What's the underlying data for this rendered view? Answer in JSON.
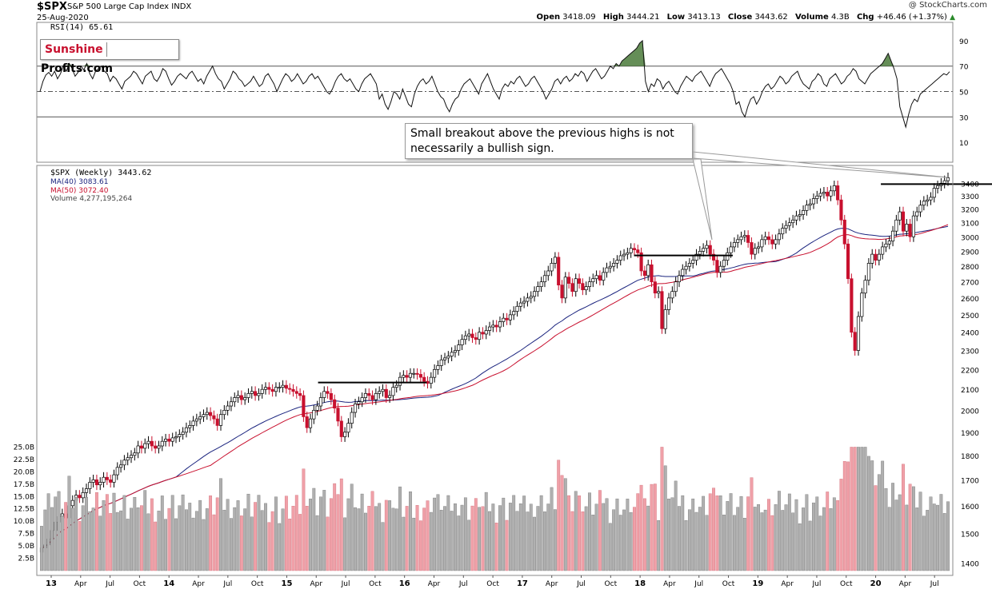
{
  "header": {
    "symbol": "$SPX",
    "description": "S&P 500 Large Cap Index",
    "exchange": "INDX",
    "date": "25-Aug-2020",
    "watermark": "@ StockCharts.com",
    "open_label": "Open",
    "open": "3418.09",
    "high_label": "High",
    "high": "3444.21",
    "low_label": "Low",
    "low": "3413.13",
    "close_label": "Close",
    "close": "3443.62",
    "volume_label": "Volume",
    "volume": "4.3B",
    "chg_label": "Chg",
    "chg": "+46.46 (+1.37%)"
  },
  "logo": {
    "part1": "Sunshine",
    "part2": "Profits.com"
  },
  "annotation": {
    "text": "Small breakout above the previous highs is not necessarily a bullish sign."
  },
  "colors": {
    "up": "#000000",
    "down": "#c8102e",
    "ma40": "#1a237e",
    "ma50": "#c8102e",
    "rsi_fill": "#4a7a3a",
    "volume_up": "#b0b0b0",
    "volume_down": "#f0a0a8"
  },
  "chart_data": [
    {
      "type": "line",
      "title": "RSI(14) 65.61",
      "series": [
        {
          "name": "RSI(14) 65.61",
          "values": [
            50,
            58,
            63,
            65,
            62,
            66,
            60,
            64,
            70,
            66,
            72,
            68,
            62,
            65,
            70,
            67,
            72,
            64,
            60,
            66,
            68,
            70,
            66,
            64,
            58,
            62,
            60,
            56,
            52,
            58,
            60,
            62,
            66,
            64,
            60,
            56,
            62,
            64,
            66,
            60,
            58,
            62,
            68,
            66,
            60,
            55,
            58,
            62,
            64,
            62,
            60,
            64,
            66,
            62,
            58,
            60,
            56,
            62,
            66,
            70,
            64,
            60,
            58,
            52,
            56,
            60,
            66,
            64,
            60,
            58,
            54,
            56,
            58,
            62,
            58,
            54,
            56,
            62,
            64,
            60,
            56,
            50,
            55,
            60,
            64,
            62,
            58,
            60,
            64,
            60,
            56,
            58,
            62,
            64,
            60,
            62,
            58,
            54,
            50,
            48,
            52,
            58,
            62,
            64,
            60,
            58,
            60,
            56,
            52,
            50,
            56,
            60,
            62,
            64,
            60,
            56,
            44,
            48,
            40,
            36,
            42,
            50,
            48,
            44,
            52,
            46,
            40,
            38,
            48,
            54,
            58,
            60,
            56,
            58,
            62,
            56,
            50,
            46,
            44,
            38,
            34,
            40,
            44,
            46,
            52,
            56,
            58,
            60,
            56,
            52,
            48,
            56,
            60,
            64,
            58,
            52,
            48,
            44,
            52,
            56,
            54,
            58,
            56,
            60,
            62,
            58,
            54,
            56,
            60,
            62,
            58,
            54,
            50,
            44,
            48,
            52,
            58,
            60,
            56,
            60,
            62,
            58,
            60,
            64,
            62,
            66,
            64,
            58,
            62,
            66,
            68,
            64,
            60,
            62,
            66,
            70,
            68,
            72,
            70,
            74,
            76,
            78,
            80,
            82,
            84,
            88,
            90,
            58,
            50,
            56,
            54,
            60,
            58,
            52,
            56,
            58,
            54,
            50,
            48,
            54,
            58,
            62,
            60,
            58,
            62,
            64,
            66,
            62,
            58,
            54,
            60,
            64,
            66,
            68,
            64,
            60,
            56,
            50,
            40,
            42,
            34,
            30,
            38,
            44,
            46,
            40,
            44,
            50,
            54,
            56,
            52,
            54,
            58,
            62,
            60,
            56,
            58,
            62,
            64,
            66,
            60,
            56,
            54,
            52,
            58,
            60,
            64,
            62,
            56,
            54,
            60,
            62,
            64,
            60,
            56,
            58,
            62,
            64,
            68,
            66,
            60,
            58,
            56,
            60,
            64,
            66,
            68,
            70,
            72,
            76,
            80,
            74,
            68,
            60,
            38,
            30,
            22,
            32,
            40,
            44,
            42,
            48,
            50,
            52,
            54,
            56,
            58,
            60,
            62,
            64,
            63,
            65.61
          ]
        }
      ],
      "ylim": [
        0,
        100
      ],
      "y_ticks": [
        "10",
        "30",
        "50",
        "70",
        "90"
      ],
      "reference_lines": [
        30,
        50,
        70
      ],
      "grid": false
    },
    {
      "type": "line",
      "title": "$SPX (Weekly) 3443.62",
      "series": [
        {
          "name": "$SPX (Weekly) 3443.62",
          "values": [
            1450,
            1460,
            1480,
            1510,
            1540,
            1560,
            1570,
            1555,
            1600,
            1620,
            1640,
            1630,
            1650,
            1665,
            1690,
            1700,
            1680,
            1690,
            1710,
            1700,
            1690,
            1720,
            1750,
            1760,
            1780,
            1790,
            1800,
            1810,
            1840,
            1830,
            1850,
            1860,
            1840,
            1830,
            1840,
            1860,
            1870,
            1860,
            1875,
            1880,
            1890,
            1900,
            1920,
            1930,
            1950,
            1960,
            1970,
            1980,
            1990,
            1975,
            1960,
            1930,
            1980,
            2000,
            2020,
            2040,
            2060,
            2070,
            2050,
            2060,
            2080,
            2090,
            2070,
            2080,
            2100,
            2110,
            2100,
            2090,
            2110,
            2110,
            2120,
            2105,
            2100,
            2090,
            2080,
            2070,
            1970,
            1920,
            1960,
            2000,
            2020,
            2060,
            2090,
            2080,
            2050,
            2010,
            1950,
            1880,
            1900,
            1940,
            1990,
            2030,
            2040,
            2060,
            2080,
            2070,
            2050,
            2080,
            2090,
            2100,
            2060,
            2070,
            2110,
            2120,
            2160,
            2170,
            2160,
            2180,
            2180,
            2175,
            2160,
            2140,
            2130,
            2160,
            2200,
            2220,
            2250,
            2260,
            2270,
            2290,
            2300,
            2330,
            2360,
            2380,
            2390,
            2370,
            2360,
            2400,
            2390,
            2410,
            2430,
            2440,
            2430,
            2460,
            2480,
            2470,
            2500,
            2520,
            2550,
            2570,
            2580,
            2600,
            2610,
            2640,
            2670,
            2700,
            2740,
            2770,
            2820,
            2860,
            2680,
            2600,
            2730,
            2690,
            2640,
            2720,
            2690,
            2650,
            2670,
            2700,
            2720,
            2740,
            2710,
            2760,
            2790,
            2800,
            2820,
            2840,
            2870,
            2880,
            2890,
            2920,
            2910,
            2890,
            2770,
            2740,
            2810,
            2700,
            2630,
            2640,
            2420,
            2530,
            2600,
            2640,
            2700,
            2740,
            2780,
            2800,
            2820,
            2840,
            2880,
            2900,
            2920,
            2940,
            2880,
            2840,
            2760,
            2800,
            2840,
            2890,
            2930,
            2960,
            2980,
            3000,
            3010,
            2960,
            2880,
            2920,
            2930,
            2980,
            3000,
            2980,
            2950,
            2980,
            3020,
            3060,
            3080,
            3100,
            3120,
            3150,
            3160,
            3190,
            3230,
            3240,
            3280,
            3300,
            3320,
            3330,
            3300,
            3340,
            3380,
            3270,
            3120,
            2950,
            2720,
            2400,
            2300,
            2490,
            2630,
            2710,
            2820,
            2880,
            2840,
            2880,
            2930,
            2950,
            2970,
            3040,
            3120,
            3180,
            3040,
            3090,
            3000,
            3150,
            3180,
            3230,
            3260,
            3270,
            3290,
            3360,
            3380,
            3400,
            3420,
            3443.62
          ]
        },
        {
          "name": "MA(40) 3083.61",
          "values": []
        },
        {
          "name": "MA(50) 3072.40",
          "values": []
        }
      ],
      "y_ticks": [
        "1400",
        "1500",
        "1600",
        "1700",
        "1800",
        "1900",
        "2000",
        "2100",
        "2200",
        "2300",
        "2400",
        "2500",
        "2600",
        "2700",
        "2800",
        "2900",
        "3000",
        "3100",
        "3200",
        "3300",
        "3400"
      ],
      "x_ticks": [
        "13",
        "Apr",
        "Jul",
        "Oct",
        "14",
        "Apr",
        "Jul",
        "Oct",
        "15",
        "Apr",
        "Jul",
        "Oct",
        "16",
        "Apr",
        "Jul",
        "Oct",
        "17",
        "Apr",
        "Jul",
        "Oct",
        "18",
        "Apr",
        "Jul",
        "Oct",
        "19",
        "Apr",
        "Jul",
        "Oct",
        "20",
        "Apr",
        "Jul"
      ],
      "ylim": [
        1380,
        3440
      ],
      "scale": "log",
      "horizontal_levels": [
        {
          "value": 2134,
          "from": "2015-05",
          "to": "2016-04"
        },
        {
          "value": 2872,
          "from": "2018-01",
          "to": "2018-11"
        },
        {
          "value": 3393,
          "from": "2020-02",
          "to": "2020-08"
        }
      ]
    },
    {
      "type": "bar",
      "title": "Volume 4,277,195,264",
      "series": [
        {
          "name": "Volume 4,277,195,264",
          "values": []
        }
      ],
      "y_ticks": [
        "2.5B",
        "5.0B",
        "7.5B",
        "10.0B",
        "12.5B",
        "15.0B",
        "17.5B",
        "20.0B",
        "22.5B",
        "25.0B"
      ],
      "ylim": [
        0,
        27.5
      ]
    }
  ]
}
